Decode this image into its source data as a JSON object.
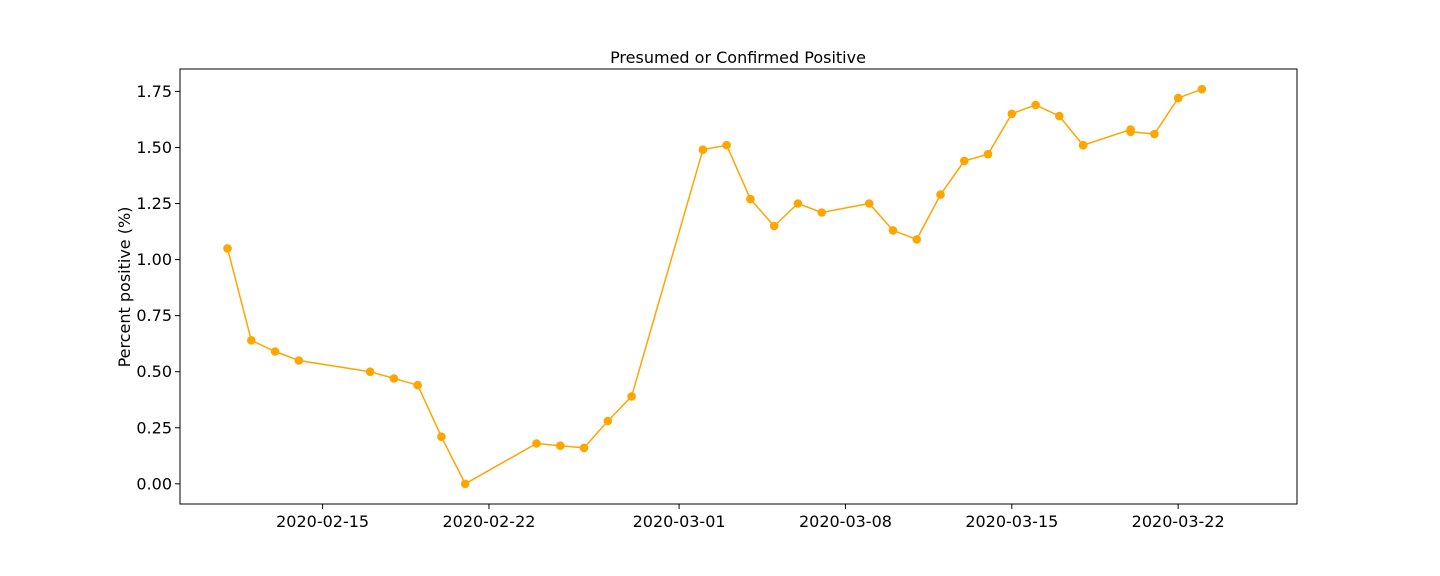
{
  "chart_data": {
    "type": "line",
    "title": "Presumed or Confirmed Positive",
    "xlabel": "",
    "ylabel": "Percent positive (%)",
    "x_tick_labels": [
      "2020-02-15",
      "2020-02-22",
      "2020-03-01",
      "2020-03-08",
      "2020-03-15",
      "2020-03-22"
    ],
    "y_tick_labels": [
      "0.00",
      "0.25",
      "0.50",
      "0.75",
      "1.00",
      "1.25",
      "1.50",
      "1.75"
    ],
    "xlim": [
      "2020-02-09",
      "2020-03-27"
    ],
    "ylim": [
      -0.09,
      1.85
    ],
    "grid": false,
    "series": [
      {
        "color": "#ffa500",
        "marker": "circle",
        "points": [
          {
            "x": "2020-02-11",
            "y": 1.05
          },
          {
            "x": "2020-02-12",
            "y": 0.64
          },
          {
            "x": "2020-02-13",
            "y": 0.59
          },
          {
            "x": "2020-02-14",
            "y": 0.55
          },
          {
            "x": "2020-02-17",
            "y": 0.5
          },
          {
            "x": "2020-02-18",
            "y": 0.47
          },
          {
            "x": "2020-02-19",
            "y": 0.44
          },
          {
            "x": "2020-02-20",
            "y": 0.21
          },
          {
            "x": "2020-02-21",
            "y": 0.0
          },
          {
            "x": "2020-02-24",
            "y": 0.18
          },
          {
            "x": "2020-02-25",
            "y": 0.17
          },
          {
            "x": "2020-02-26",
            "y": 0.16
          },
          {
            "x": "2020-02-27",
            "y": 0.28
          },
          {
            "x": "2020-02-28",
            "y": 0.39
          },
          {
            "x": "2020-03-02",
            "y": 1.49
          },
          {
            "x": "2020-03-03",
            "y": 1.51
          },
          {
            "x": "2020-03-04",
            "y": 1.27
          },
          {
            "x": "2020-03-05",
            "y": 1.15
          },
          {
            "x": "2020-03-06",
            "y": 1.25
          },
          {
            "x": "2020-03-07",
            "y": 1.21
          },
          {
            "x": "2020-03-09",
            "y": 1.25
          },
          {
            "x": "2020-03-10",
            "y": 1.13
          },
          {
            "x": "2020-03-11",
            "y": 1.09
          },
          {
            "x": "2020-03-12",
            "y": 1.29
          },
          {
            "x": "2020-03-13",
            "y": 1.44
          },
          {
            "x": "2020-03-14",
            "y": 1.47
          },
          {
            "x": "2020-03-15",
            "y": 1.65
          },
          {
            "x": "2020-03-16",
            "y": 1.69
          },
          {
            "x": "2020-03-17",
            "y": 1.64
          },
          {
            "x": "2020-03-18",
            "y": 1.51
          },
          {
            "x": "2020-03-18",
            "y": 1.51
          },
          {
            "x": "2020-03-20",
            "y": 1.58
          },
          {
            "x": "2020-03-20",
            "y": 1.57
          },
          {
            "x": "2020-03-21",
            "y": 1.56
          },
          {
            "x": "2020-03-22",
            "y": 1.72
          },
          {
            "x": "2020-03-23",
            "y": 1.76
          }
        ]
      }
    ]
  }
}
